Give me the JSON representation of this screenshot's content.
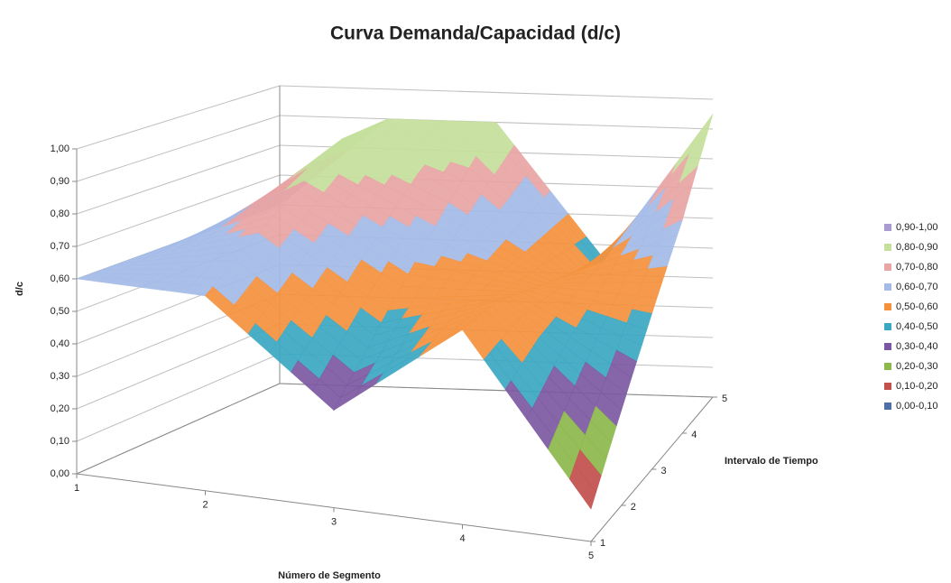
{
  "chart_data": {
    "type": "surface",
    "title": "Curva Demanda/Capacidad (d/c)",
    "x_label": "Número de Segmento",
    "depth_label": "Intervalo de Tiempo",
    "z_label": "d/c",
    "categories": [
      "1",
      "2",
      "3",
      "4",
      "5"
    ],
    "series": [
      {
        "name": "1",
        "values": [
          0.6,
          0.6,
          0.3,
          0.6,
          0.1
        ]
      },
      {
        "name": "2",
        "values": [
          0.6,
          0.7,
          0.45,
          0.6,
          0.3
        ]
      },
      {
        "name": "3",
        "values": [
          0.6,
          0.8,
          0.6,
          0.55,
          0.5
        ]
      },
      {
        "name": "4",
        "values": [
          0.6,
          0.9,
          0.75,
          0.5,
          0.7
        ]
      },
      {
        "name": "5",
        "values": [
          0.6,
          0.9,
          0.9,
          0.45,
          0.95
        ]
      }
    ],
    "zlim": [
      0,
      1
    ],
    "zticks": [
      {
        "value": 0,
        "label": "0,00"
      },
      {
        "value": 0.1,
        "label": "0,10"
      },
      {
        "value": 0.2,
        "label": "0,20"
      },
      {
        "value": 0.3,
        "label": "0,30"
      },
      {
        "value": 0.4,
        "label": "0,40"
      },
      {
        "value": 0.5,
        "label": "0,50"
      },
      {
        "value": 0.6,
        "label": "0,60"
      },
      {
        "value": 0.7,
        "label": "0,70"
      },
      {
        "value": 0.8,
        "label": "0,80"
      },
      {
        "value": 0.9,
        "label": "0,90"
      },
      {
        "value": 1,
        "label": "1,00"
      }
    ],
    "grid": true,
    "legend": "right",
    "bands": [
      {
        "label": "0,90-1,00",
        "from": 0.9,
        "to": 1,
        "color": "#a89bd0"
      },
      {
        "label": "0,80-0,90",
        "from": 0.8,
        "to": 0.9,
        "color": "#c5e09d"
      },
      {
        "label": "0,70-0,80",
        "from": 0.7,
        "to": 0.8,
        "color": "#e9a4a4"
      },
      {
        "label": "0,60-0,70",
        "from": 0.6,
        "to": 0.7,
        "color": "#a4bbe8"
      },
      {
        "label": "0,50-0,60",
        "from": 0.5,
        "to": 0.6,
        "color": "#f5923e"
      },
      {
        "label": "0,40-0,50",
        "from": 0.4,
        "to": 0.5,
        "color": "#3ba8c3"
      },
      {
        "label": "0,30-0,40",
        "from": 0.3,
        "to": 0.4,
        "color": "#7c58a2"
      },
      {
        "label": "0,20-0,30",
        "from": 0.2,
        "to": 0.3,
        "color": "#8db84b"
      },
      {
        "label": "0,10-0,20",
        "from": 0.1,
        "to": 0.2,
        "color": "#c3504d"
      },
      {
        "label": "0,00-0,10",
        "from": 0,
        "to": 0.1,
        "color": "#4f6fa8"
      }
    ]
  }
}
